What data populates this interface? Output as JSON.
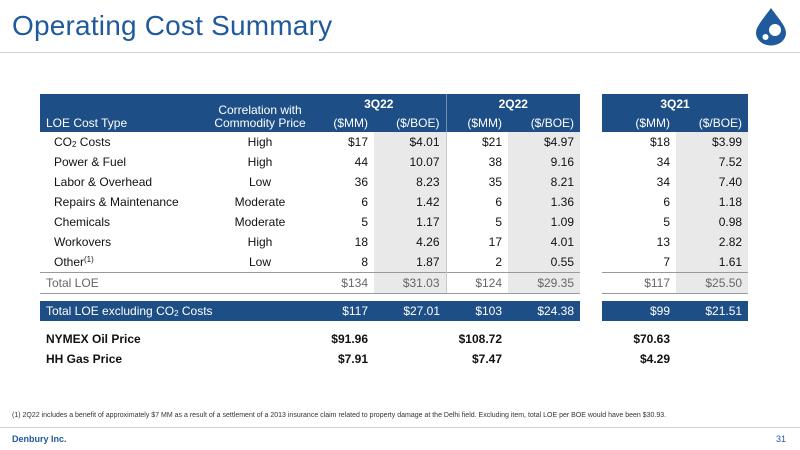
{
  "title": "Operating Cost Summary",
  "table": {
    "header": {
      "lt": "LOE Cost Type",
      "corr1": "Correlation with",
      "corr2": "Commodity Price",
      "p1": "3Q22",
      "p2": "2Q22",
      "p3": "3Q21",
      "mm": "($MM)",
      "boe": "($/BOE)"
    },
    "rows": [
      {
        "lbl": "CO",
        "sub": "2",
        "lbl2": " Costs",
        "corr": "High",
        "q3mm": "$17",
        "q3boe": "$4.01",
        "q2mm": "$21",
        "q2boe": "$4.97",
        "q21mm": "$18",
        "q21boe": "$3.99"
      },
      {
        "lbl": "Power & Fuel",
        "corr": "High",
        "q3mm": "44",
        "q3boe": "10.07",
        "q2mm": "38",
        "q2boe": "9.16",
        "q21mm": "34",
        "q21boe": "7.52"
      },
      {
        "lbl": "Labor & Overhead",
        "corr": "Low",
        "q3mm": "36",
        "q3boe": "8.23",
        "q2mm": "35",
        "q2boe": "8.21",
        "q21mm": "34",
        "q21boe": "7.40"
      },
      {
        "lbl": "Repairs & Maintenance",
        "corr": "Moderate",
        "q3mm": "6",
        "q3boe": "1.42",
        "q2mm": "6",
        "q2boe": "1.36",
        "q21mm": "6",
        "q21boe": "1.18"
      },
      {
        "lbl": "Chemicals",
        "corr": "Moderate",
        "q3mm": "5",
        "q3boe": "1.17",
        "q2mm": "5",
        "q2boe": "1.09",
        "q21mm": "5",
        "q21boe": "0.98"
      },
      {
        "lbl": "Workovers",
        "corr": "High",
        "q3mm": "18",
        "q3boe": "4.26",
        "q2mm": "17",
        "q2boe": "4.01",
        "q21mm": "13",
        "q21boe": "2.82"
      },
      {
        "lbl": "Other",
        "sup": "(1)",
        "corr": "Low",
        "q3mm": "8",
        "q3boe": "1.87",
        "q2mm": "2",
        "q2boe": "0.55",
        "q21mm": "7",
        "q21boe": "1.61"
      }
    ],
    "total": {
      "lbl": "Total LOE",
      "q3mm": "$134",
      "q3boe": "$31.03",
      "q2mm": "$124",
      "q2boe": "$29.35",
      "q21mm": "$117",
      "q21boe": "$25.50"
    },
    "excl": {
      "lbl": "Total LOE excluding CO",
      "sub": "2",
      "lbl2": " Costs",
      "q3mm": "$117",
      "q3boe": "$27.01",
      "q2mm": "$103",
      "q2boe": "$24.38",
      "q21mm": "$99",
      "q21boe": "$21.51"
    },
    "nymex": {
      "lbl": "NYMEX Oil Price",
      "q3": "$91.96",
      "q2": "$108.72",
      "q21": "$70.63"
    },
    "hh": {
      "lbl": "HH Gas Price",
      "q3": "$7.91",
      "q2": "$7.47",
      "q21": "$4.29"
    }
  },
  "footnote": "(1) 2Q22 includes a benefit of approximately $7 MM as a result of a settlement of a 2013 insurance claim related to property damage at the Delhi field. Excluding item, total LOE per BOE would have been $30.93.",
  "company": "Denbury Inc.",
  "page": "31",
  "colors": {
    "brand_blue": "#1e4e86",
    "title_blue": "#1f5a9c",
    "shade": "#e9e9e9"
  }
}
